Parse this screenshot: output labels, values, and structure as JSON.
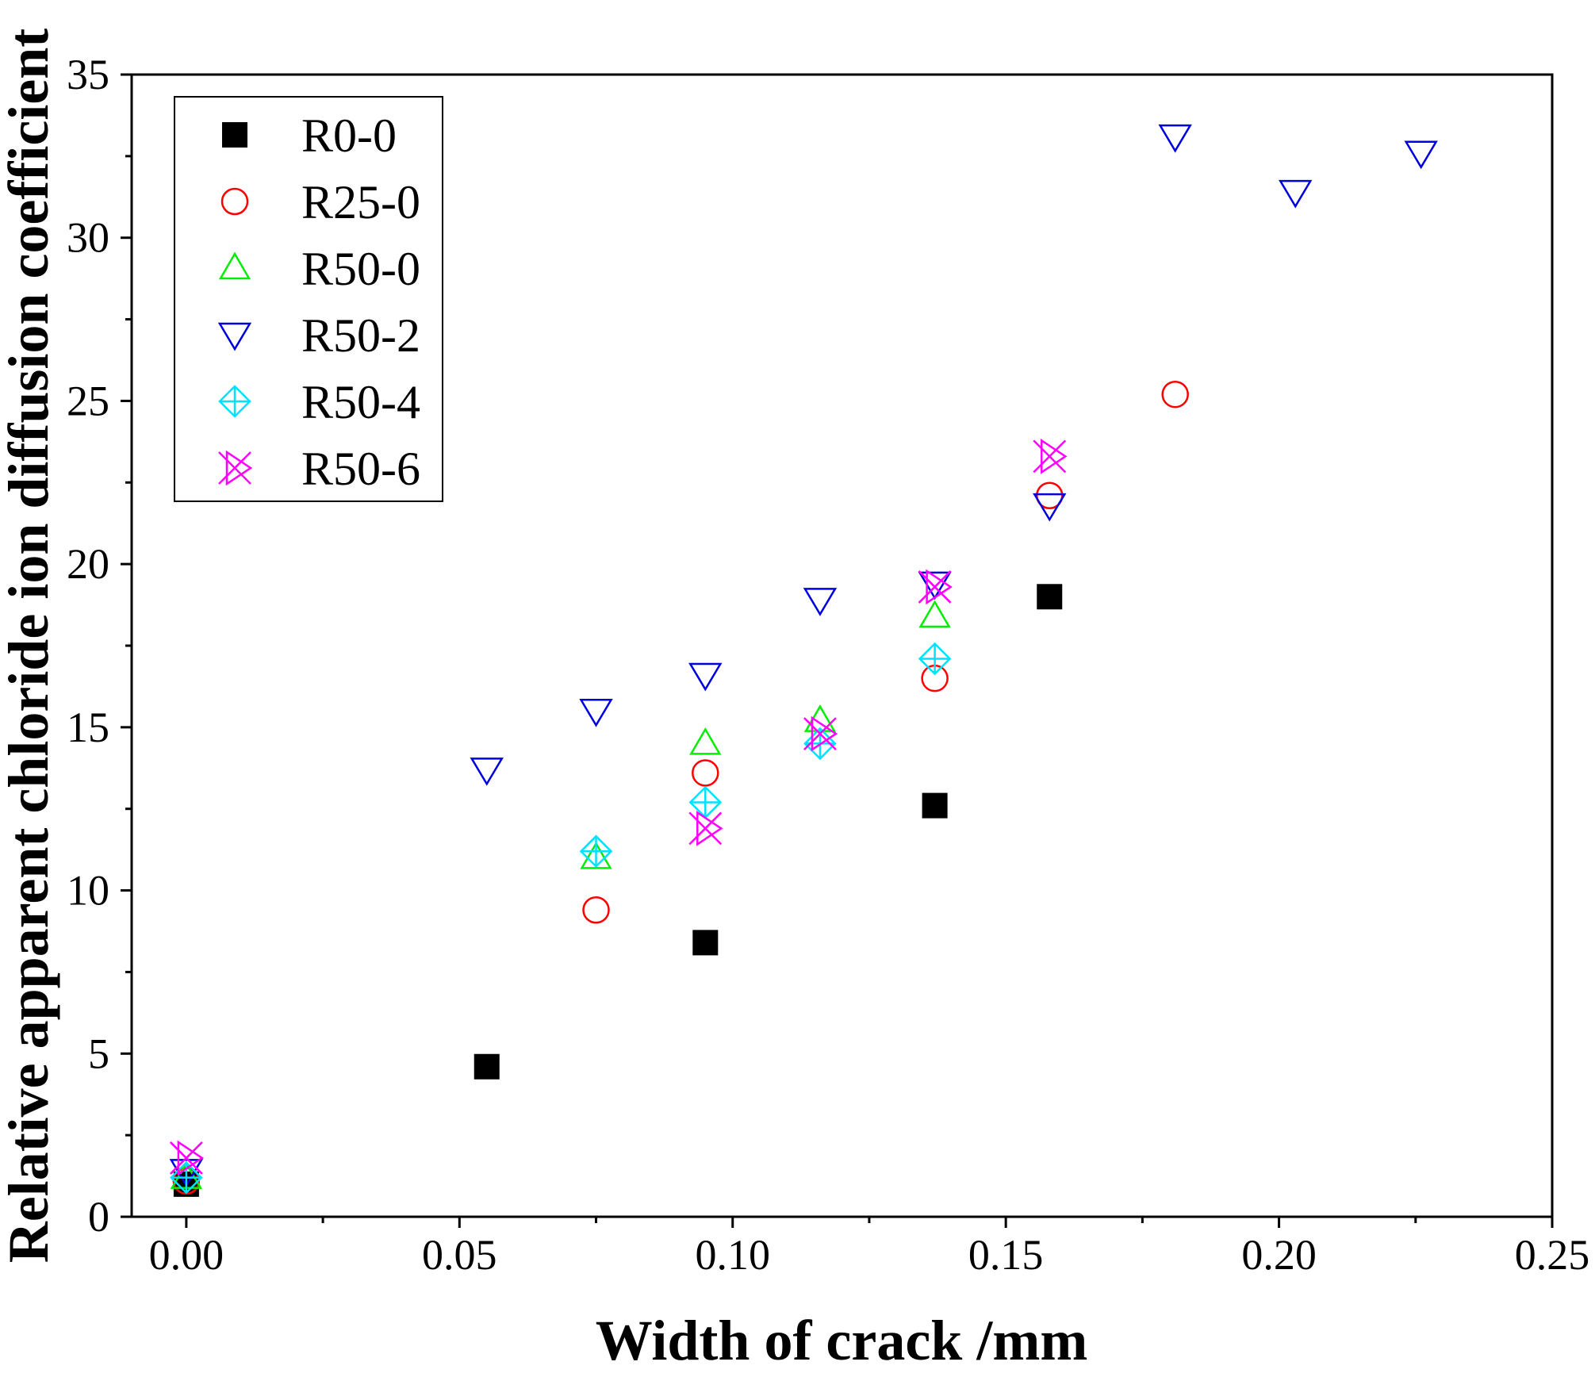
{
  "chart_data": {
    "type": "scatter",
    "title": "",
    "xlabel": "Width of crack /mm",
    "ylabel": "Relative apparent chloride ion diffusion coefficient",
    "xlim": [
      -0.01,
      0.25
    ],
    "ylim": [
      0,
      35
    ],
    "x_ticks": [
      0.0,
      0.05,
      0.1,
      0.15,
      0.2,
      0.25
    ],
    "x_tick_labels": [
      "0.00",
      "0.05",
      "0.10",
      "0.15",
      "0.20",
      "0.25"
    ],
    "y_ticks": [
      0,
      5,
      10,
      15,
      20,
      25,
      30,
      35
    ],
    "y_tick_labels": [
      "0",
      "5",
      "10",
      "15",
      "20",
      "25",
      "30",
      "35"
    ],
    "grid": false,
    "legend_position": "top-left",
    "series": [
      {
        "name": "R0-0",
        "marker": "filled-square",
        "color": "#000000",
        "points": [
          [
            0.0,
            1.0
          ],
          [
            0.055,
            4.6
          ],
          [
            0.095,
            8.4
          ],
          [
            0.137,
            12.6
          ],
          [
            0.158,
            19.0
          ]
        ]
      },
      {
        "name": "R25-0",
        "marker": "circle",
        "color": "#ff0000",
        "points": [
          [
            0.0,
            1.1
          ],
          [
            0.075,
            9.4
          ],
          [
            0.095,
            13.6
          ],
          [
            0.137,
            16.5
          ],
          [
            0.158,
            22.1
          ],
          [
            0.181,
            25.2
          ]
        ]
      },
      {
        "name": "R50-0",
        "marker": "triangle-up",
        "color": "#00ee00",
        "points": [
          [
            0.0,
            1.2
          ],
          [
            0.075,
            11.0
          ],
          [
            0.095,
            14.5
          ],
          [
            0.116,
            15.2
          ],
          [
            0.137,
            18.4
          ]
        ]
      },
      {
        "name": "R50-2",
        "marker": "triangle-down",
        "color": "#0000dd",
        "points": [
          [
            0.0,
            1.4
          ],
          [
            0.055,
            13.7
          ],
          [
            0.075,
            15.5
          ],
          [
            0.095,
            16.6
          ],
          [
            0.116,
            18.9
          ],
          [
            0.137,
            19.4
          ],
          [
            0.158,
            21.8
          ],
          [
            0.181,
            33.1
          ],
          [
            0.203,
            31.4
          ],
          [
            0.226,
            32.6
          ]
        ]
      },
      {
        "name": "R50-4",
        "marker": "diamond-plus",
        "color": "#00e0ff",
        "points": [
          [
            0.0,
            1.2
          ],
          [
            0.075,
            11.2
          ],
          [
            0.095,
            12.7
          ],
          [
            0.116,
            14.5
          ],
          [
            0.137,
            17.1
          ]
        ]
      },
      {
        "name": "R50-6",
        "marker": "x-triangle",
        "color": "#ff00ff",
        "points": [
          [
            0.0,
            1.8
          ],
          [
            0.095,
            11.9
          ],
          [
            0.116,
            14.8
          ],
          [
            0.137,
            19.3
          ],
          [
            0.158,
            23.3
          ]
        ]
      }
    ]
  }
}
